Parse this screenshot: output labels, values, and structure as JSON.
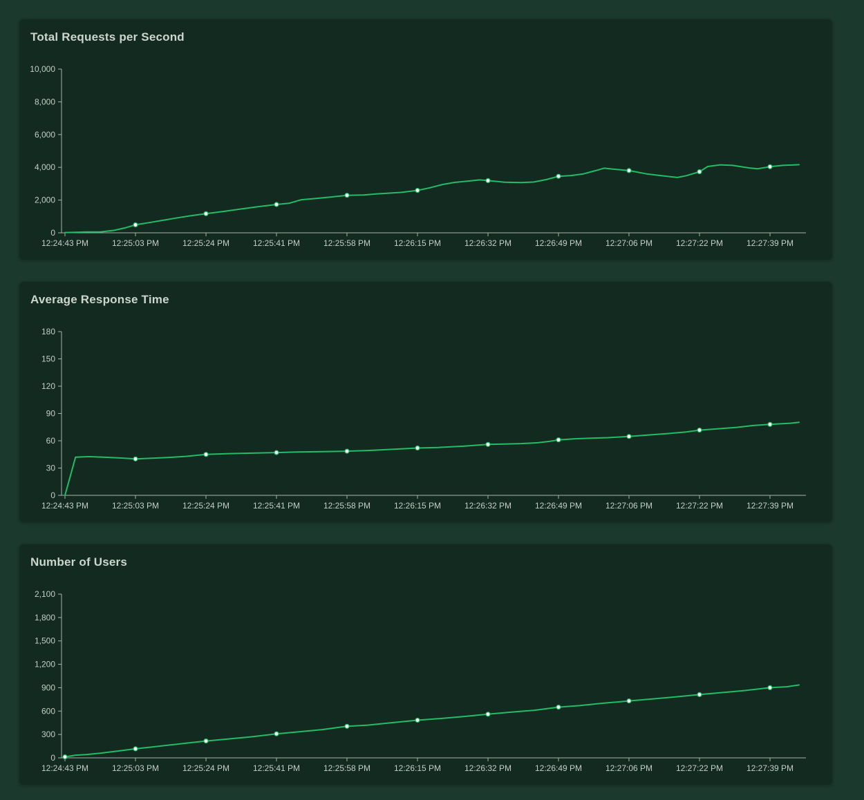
{
  "page": {
    "background": "#1b392c",
    "card_background": "#132a20"
  },
  "theme": {
    "line_color": "#22bd66",
    "marker_color": "#ffffff",
    "axis_color": "#a9b5ad",
    "label_color": "#c4cec7",
    "title_color": "#ccd6cf"
  },
  "x_axis": {
    "labels": [
      "12:24:43 PM",
      "12:25:03 PM",
      "12:25:24 PM",
      "12:25:41 PM",
      "12:25:58 PM",
      "12:26:15 PM",
      "12:26:32 PM",
      "12:26:49 PM",
      "12:27:06 PM",
      "12:27:22 PM",
      "12:27:39 PM"
    ],
    "label_times": [
      0,
      20,
      41,
      58,
      75,
      92,
      109,
      126,
      143,
      159,
      176
    ]
  },
  "chart_data": [
    {
      "id": "total-rps",
      "type": "line",
      "title": "Total Requests per Second",
      "ylabel": "",
      "y_max": 10000,
      "y_tick_values": [
        0,
        2000,
        4000,
        6000,
        8000,
        10000
      ],
      "y_tick_labels": [
        "0",
        "2,000",
        "4,000",
        "6,000",
        "8,000",
        "10,000"
      ],
      "grid": false,
      "legend": "none",
      "marker_times": [
        20,
        41,
        58,
        75,
        92,
        109,
        126,
        143,
        159,
        176
      ],
      "marker_values": [
        490,
        1170,
        1730,
        2290,
        2590,
        3190,
        3450,
        3800,
        3730,
        4040
      ],
      "points": [
        [
          0,
          15
        ],
        [
          3,
          30
        ],
        [
          6,
          50
        ],
        [
          10,
          55
        ],
        [
          14,
          150
        ],
        [
          17,
          300
        ],
        [
          20,
          490
        ],
        [
          24,
          620
        ],
        [
          28,
          760
        ],
        [
          32,
          900
        ],
        [
          36,
          1030
        ],
        [
          41,
          1170
        ],
        [
          45,
          1300
        ],
        [
          49,
          1440
        ],
        [
          53,
          1580
        ],
        [
          58,
          1730
        ],
        [
          61,
          1800
        ],
        [
          64,
          2020
        ],
        [
          68,
          2110
        ],
        [
          71,
          2180
        ],
        [
          75,
          2290
        ],
        [
          79,
          2310
        ],
        [
          82,
          2370
        ],
        [
          85,
          2420
        ],
        [
          88,
          2470
        ],
        [
          92,
          2590
        ],
        [
          95,
          2750
        ],
        [
          98,
          2950
        ],
        [
          101,
          3080
        ],
        [
          104,
          3150
        ],
        [
          107,
          3230
        ],
        [
          109,
          3190
        ],
        [
          113,
          3090
        ],
        [
          117,
          3070
        ],
        [
          120,
          3100
        ],
        [
          123,
          3250
        ],
        [
          126,
          3450
        ],
        [
          129,
          3500
        ],
        [
          132,
          3600
        ],
        [
          135,
          3800
        ],
        [
          137,
          3950
        ],
        [
          140,
          3870
        ],
        [
          143,
          3800
        ],
        [
          147,
          3600
        ],
        [
          151,
          3470
        ],
        [
          154,
          3380
        ],
        [
          156,
          3490
        ],
        [
          159,
          3730
        ],
        [
          161,
          4050
        ],
        [
          164,
          4150
        ],
        [
          167,
          4120
        ],
        [
          171,
          3960
        ],
        [
          173,
          3910
        ],
        [
          176,
          4040
        ],
        [
          179,
          4120
        ],
        [
          183,
          4160
        ]
      ]
    },
    {
      "id": "avg-response-time",
      "type": "line",
      "title": "Average Response Time",
      "ylabel": "",
      "y_max": 180,
      "y_tick_values": [
        0,
        30,
        60,
        90,
        120,
        150,
        180
      ],
      "y_tick_labels": [
        "0",
        "30",
        "60",
        "90",
        "120",
        "150",
        "180"
      ],
      "grid": false,
      "legend": "none",
      "marker_times": [
        20,
        41,
        58,
        75,
        92,
        109,
        126,
        143,
        159,
        176
      ],
      "marker_values": [
        40,
        45,
        47,
        48.5,
        52,
        56,
        61,
        64.7,
        71.7,
        78
      ],
      "points": [
        [
          0,
          0
        ],
        [
          3,
          42
        ],
        [
          7,
          42.5
        ],
        [
          12,
          41.8
        ],
        [
          16,
          41
        ],
        [
          20,
          40
        ],
        [
          25,
          40.8
        ],
        [
          30,
          41.7
        ],
        [
          35,
          42.8
        ],
        [
          41,
          45
        ],
        [
          46,
          45.8
        ],
        [
          52,
          46.4
        ],
        [
          58,
          47
        ],
        [
          63,
          47.6
        ],
        [
          69,
          48.1
        ],
        [
          75,
          48.5
        ],
        [
          80,
          49.3
        ],
        [
          86,
          50.6
        ],
        [
          92,
          52
        ],
        [
          97,
          52.6
        ],
        [
          103,
          54
        ],
        [
          109,
          56
        ],
        [
          113,
          56.4
        ],
        [
          117,
          56.9
        ],
        [
          121,
          57.8
        ],
        [
          124,
          59.5
        ],
        [
          126,
          61
        ],
        [
          130,
          62.2
        ],
        [
          134,
          62.9
        ],
        [
          138,
          63.4
        ],
        [
          143,
          64.7
        ],
        [
          148,
          66.5
        ],
        [
          152,
          68
        ],
        [
          156,
          69.7
        ],
        [
          159,
          71.7
        ],
        [
          163,
          73
        ],
        [
          168,
          74.7
        ],
        [
          172,
          76.8
        ],
        [
          176,
          78
        ],
        [
          181,
          79.3
        ],
        [
          183,
          80.3
        ]
      ]
    },
    {
      "id": "number-of-users",
      "type": "line",
      "title": "Number of Users",
      "ylabel": "",
      "y_max": 2100,
      "y_tick_values": [
        0,
        300,
        600,
        900,
        1200,
        1500,
        1800,
        2100
      ],
      "y_tick_labels": [
        "0",
        "300",
        "600",
        "900",
        "1,200",
        "1,500",
        "1,800",
        "2,100"
      ],
      "grid": false,
      "legend": "none",
      "marker_times": [
        0,
        20,
        41,
        58,
        75,
        92,
        109,
        126,
        143,
        159,
        176
      ],
      "marker_values": [
        12,
        116,
        216,
        308,
        405,
        483,
        560,
        650,
        730,
        812,
        900
      ],
      "points": [
        [
          0,
          12
        ],
        [
          3,
          35
        ],
        [
          6,
          42
        ],
        [
          10,
          60
        ],
        [
          15,
          88
        ],
        [
          20,
          116
        ],
        [
          25,
          140
        ],
        [
          30,
          164
        ],
        [
          35,
          188
        ],
        [
          41,
          216
        ],
        [
          46,
          240
        ],
        [
          52,
          270
        ],
        [
          58,
          308
        ],
        [
          63,
          332
        ],
        [
          69,
          362
        ],
        [
          75,
          405
        ],
        [
          80,
          420
        ],
        [
          86,
          452
        ],
        [
          92,
          483
        ],
        [
          97,
          502
        ],
        [
          103,
          530
        ],
        [
          109,
          560
        ],
        [
          114,
          584
        ],
        [
          120,
          610
        ],
        [
          126,
          650
        ],
        [
          131,
          670
        ],
        [
          137,
          702
        ],
        [
          143,
          730
        ],
        [
          148,
          754
        ],
        [
          154,
          784
        ],
        [
          159,
          812
        ],
        [
          164,
          836
        ],
        [
          170,
          864
        ],
        [
          176,
          900
        ],
        [
          180,
          912
        ],
        [
          183,
          935
        ]
      ]
    }
  ]
}
